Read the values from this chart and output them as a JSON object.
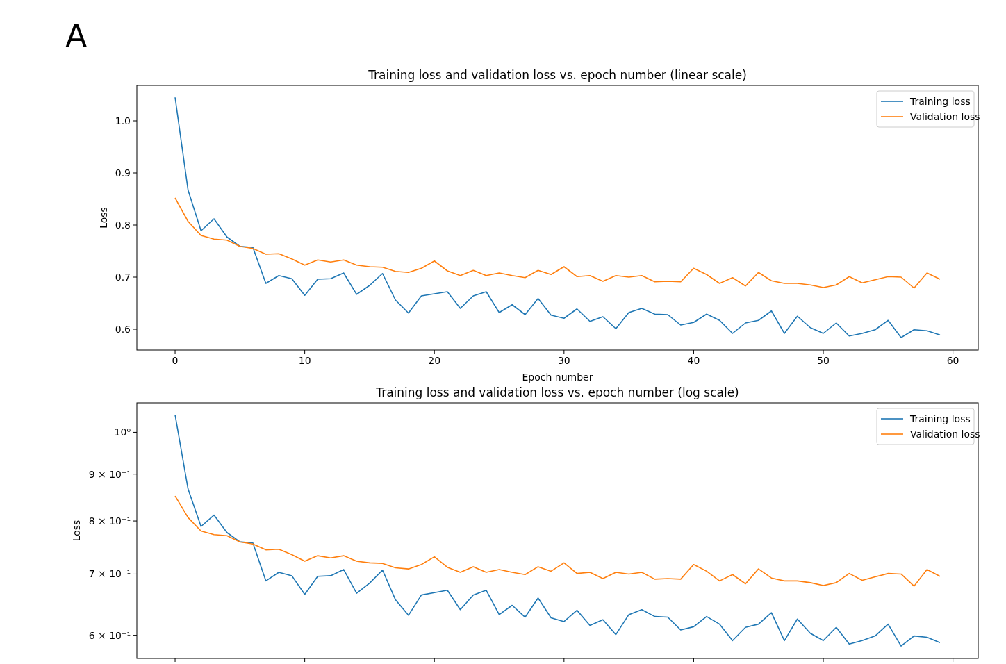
{
  "chart_data": [
    {
      "type": "line",
      "title": "Training loss and validation loss vs. epoch number (linear scale)",
      "xlabel": "Epoch number",
      "ylabel": "Loss",
      "annotations": [
        "A"
      ],
      "x": [
        0,
        1,
        2,
        3,
        4,
        5,
        6,
        7,
        8,
        9,
        10,
        11,
        12,
        13,
        14,
        15,
        16,
        17,
        18,
        19,
        20,
        21,
        22,
        23,
        24,
        25,
        26,
        27,
        28,
        29,
        30,
        31,
        32,
        33,
        34,
        35,
        36,
        37,
        38,
        39,
        40,
        41,
        42,
        43,
        44,
        45,
        46,
        47,
        48,
        49,
        50,
        51,
        52,
        53,
        54,
        55,
        56,
        57,
        58,
        59
      ],
      "series": [
        {
          "name": "Training loss",
          "color": "#1f77b4",
          "values": [
            1.045,
            0.867,
            0.789,
            0.812,
            0.777,
            0.759,
            0.757,
            0.688,
            0.703,
            0.697,
            0.665,
            0.696,
            0.697,
            0.708,
            0.667,
            0.684,
            0.707,
            0.656,
            0.631,
            0.664,
            0.668,
            0.672,
            0.64,
            0.664,
            0.672,
            0.632,
            0.647,
            0.628,
            0.659,
            0.627,
            0.621,
            0.639,
            0.615,
            0.624,
            0.601,
            0.632,
            0.64,
            0.629,
            0.628,
            0.608,
            0.613,
            0.629,
            0.617,
            0.592,
            0.612,
            0.617,
            0.635,
            0.592,
            0.625,
            0.603,
            0.592,
            0.612,
            0.587,
            0.592,
            0.599,
            0.617,
            0.584,
            0.599,
            0.597,
            0.589
          ]
        },
        {
          "name": "Validation loss",
          "color": "#ff7f0e",
          "values": [
            0.852,
            0.807,
            0.78,
            0.773,
            0.771,
            0.759,
            0.755,
            0.744,
            0.745,
            0.735,
            0.723,
            0.733,
            0.729,
            0.733,
            0.723,
            0.72,
            0.719,
            0.711,
            0.709,
            0.717,
            0.731,
            0.712,
            0.703,
            0.713,
            0.703,
            0.708,
            0.703,
            0.699,
            0.713,
            0.705,
            0.72,
            0.701,
            0.703,
            0.692,
            0.703,
            0.7,
            0.703,
            0.691,
            0.692,
            0.691,
            0.717,
            0.705,
            0.688,
            0.699,
            0.683,
            0.709,
            0.693,
            0.688,
            0.688,
            0.685,
            0.68,
            0.685,
            0.701,
            0.689,
            0.695,
            0.701,
            0.7,
            0.679,
            0.708,
            0.696
          ]
        }
      ],
      "xlim": [
        -2.95,
        61.95
      ],
      "xticks": [
        0,
        10,
        20,
        30,
        40,
        50,
        60
      ],
      "ylim": [
        0.56,
        1.068
      ],
      "yticks": [
        {
          "value": 0.6,
          "label": "0.6"
        },
        {
          "value": 0.7,
          "label": "0.7"
        },
        {
          "value": 0.8,
          "label": "0.8"
        },
        {
          "value": 0.9,
          "label": "0.9"
        },
        {
          "value": 1.0,
          "label": "1.0"
        }
      ],
      "legend": "top right",
      "grid": false
    },
    {
      "type": "line",
      "title": "Training loss and validation loss vs. epoch number (log scale)",
      "ylabel": "Loss",
      "log": "y",
      "tick_labels": "y",
      "x": [
        0,
        1,
        2,
        3,
        4,
        5,
        6,
        7,
        8,
        9,
        10,
        11,
        12,
        13,
        14,
        15,
        16,
        17,
        18,
        19,
        20,
        21,
        22,
        23,
        24,
        25,
        26,
        27,
        28,
        29,
        30,
        31,
        32,
        33,
        34,
        35,
        36,
        37,
        38,
        39,
        40,
        41,
        42,
        43,
        44,
        45,
        46,
        47,
        48,
        49,
        50,
        51,
        52,
        53,
        54,
        55,
        56,
        57,
        58,
        59
      ],
      "series": [
        {
          "name": "Training loss",
          "color": "#1f77b4",
          "values": [
            1.045,
            0.867,
            0.789,
            0.812,
            0.777,
            0.759,
            0.757,
            0.688,
            0.703,
            0.697,
            0.665,
            0.696,
            0.697,
            0.708,
            0.667,
            0.684,
            0.707,
            0.656,
            0.631,
            0.664,
            0.668,
            0.672,
            0.64,
            0.664,
            0.672,
            0.632,
            0.647,
            0.628,
            0.659,
            0.627,
            0.621,
            0.639,
            0.615,
            0.624,
            0.601,
            0.632,
            0.64,
            0.629,
            0.628,
            0.608,
            0.613,
            0.629,
            0.617,
            0.592,
            0.612,
            0.617,
            0.635,
            0.592,
            0.625,
            0.603,
            0.592,
            0.612,
            0.587,
            0.592,
            0.599,
            0.617,
            0.584,
            0.599,
            0.597,
            0.589
          ]
        },
        {
          "name": "Validation loss",
          "color": "#ff7f0e",
          "values": [
            0.852,
            0.807,
            0.78,
            0.773,
            0.771,
            0.759,
            0.755,
            0.744,
            0.745,
            0.735,
            0.723,
            0.733,
            0.729,
            0.733,
            0.723,
            0.72,
            0.719,
            0.711,
            0.709,
            0.717,
            0.731,
            0.712,
            0.703,
            0.713,
            0.703,
            0.708,
            0.703,
            0.699,
            0.713,
            0.705,
            0.72,
            0.701,
            0.703,
            0.692,
            0.703,
            0.7,
            0.703,
            0.691,
            0.692,
            0.691,
            0.717,
            0.705,
            0.688,
            0.699,
            0.683,
            0.709,
            0.693,
            0.688,
            0.688,
            0.685,
            0.68,
            0.685,
            0.701,
            0.689,
            0.695,
            0.701,
            0.7,
            0.679,
            0.708,
            0.696
          ]
        }
      ],
      "xlim": [
        -2.95,
        61.95
      ],
      "xticks": [
        0,
        10,
        20,
        30,
        40,
        50,
        60
      ],
      "ylim": [
        0.566,
        1.077
      ],
      "yticks": [
        {
          "value": 0.6,
          "label": "6 × 10⁻¹"
        },
        {
          "value": 0.7,
          "label": "7 × 10⁻¹"
        },
        {
          "value": 0.8,
          "label": "8 × 10⁻¹"
        },
        {
          "value": 0.9,
          "label": "9 × 10⁻¹"
        },
        {
          "value": 1,
          "label": "10⁰"
        }
      ],
      "legend": "top right",
      "grid": false
    }
  ]
}
